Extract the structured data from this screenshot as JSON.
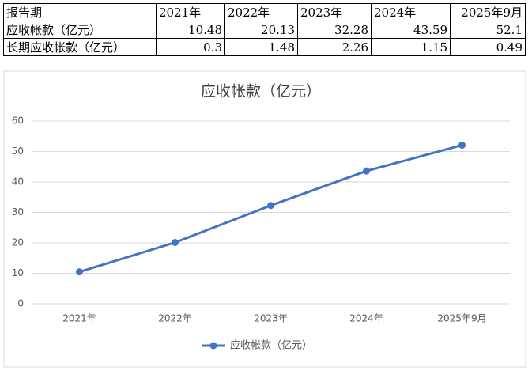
{
  "table": {
    "header": [
      "报告期",
      "2021年",
      "2022年",
      "2023年",
      "2024年",
      "2025年9月"
    ],
    "rows": [
      [
        "应收帐款（亿元）",
        10.48,
        20.13,
        32.28,
        43.59,
        52.1
      ],
      [
        "长期应收帐款（亿元）",
        0.3,
        1.48,
        2.26,
        1.15,
        0.49
      ]
    ]
  },
  "chart_data": {
    "type": "line",
    "title": "应收帐款（亿元）",
    "categories": [
      "2021年",
      "2022年",
      "2023年",
      "2024年",
      "2025年9月"
    ],
    "series": [
      {
        "name": "应收帐款（亿元）",
        "color": "#4472c4",
        "values": [
          10.48,
          20.13,
          32.28,
          43.59,
          52.1
        ]
      }
    ],
    "ylim": [
      0,
      60
    ],
    "yticks": [
      0,
      10,
      20,
      30,
      40,
      50,
      60
    ],
    "grid": true,
    "legend": "bottom"
  }
}
